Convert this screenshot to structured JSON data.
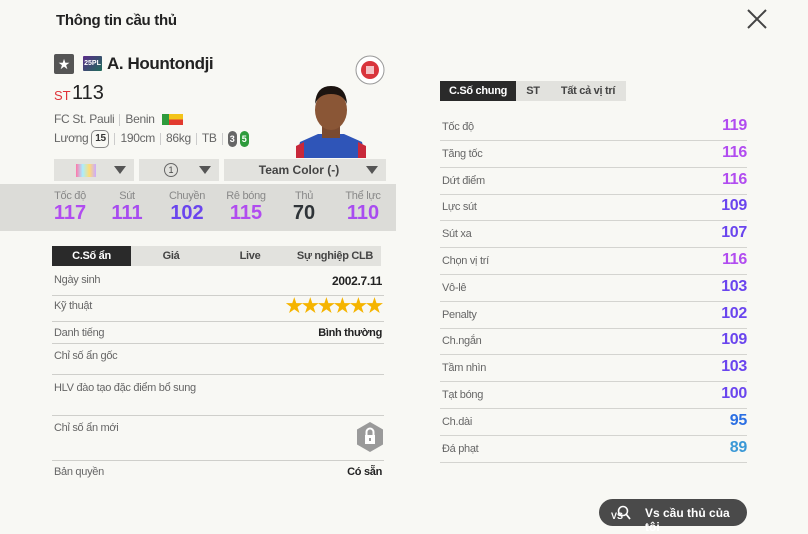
{
  "title": "Thông tin cầu thủ",
  "player": {
    "season_badge": "25PL",
    "name": "A. Hountondji",
    "position": "ST",
    "ovr": "113",
    "club": "FC St. Pauli",
    "nation": "Benin",
    "salary_label": "Lương",
    "salary": "15",
    "height": "190cm",
    "weight": "86kg",
    "body_type": "TB",
    "weak_foot": "3",
    "strong_foot": "5"
  },
  "dropdowns": {
    "level": "1",
    "team_color": "Team Color (-)"
  },
  "summary_stats": [
    {
      "label": "Tốc độ",
      "value": "117",
      "color": "#b14cf0"
    },
    {
      "label": "Sút",
      "value": "111",
      "color": "#a84cf0"
    },
    {
      "label": "Chuyền",
      "value": "102",
      "color": "#6a45ee"
    },
    {
      "label": "Rê bóng",
      "value": "115",
      "color": "#b14cf0"
    },
    {
      "label": "Thủ",
      "value": "70",
      "color": "#2f3438"
    },
    {
      "label": "Thể lực",
      "value": "110",
      "color": "#a84cf0"
    }
  ],
  "hidden_tabs": [
    "C.Số ẩn",
    "Giá",
    "Live",
    "Sự nghiệp CLB"
  ],
  "hidden_info": {
    "birth_label": "Ngày sinh",
    "birth": "2002.7.11",
    "skill_label": "Kỹ thuật",
    "skill_stars": 6,
    "fame_label": "Danh tiếng",
    "fame": "Bình thường",
    "orig_traits_label": "Chỉ số ẩn gốc",
    "coach_traits_label": "HLV đào tạo đặc điểm bổ sung",
    "new_traits_label": "Chỉ số ẩn mới",
    "license_label": "Bản quyền",
    "license": "Có sẵn"
  },
  "stat_tabs": [
    "C.Số chung",
    "ST",
    "Tất cả vị trí"
  ],
  "stats": [
    {
      "label": "Tốc độ",
      "value": "119",
      "color": "#b14cf0"
    },
    {
      "label": "Tăng tốc",
      "value": "116",
      "color": "#b14cf0"
    },
    {
      "label": "Dứt điểm",
      "value": "116",
      "color": "#b14cf0"
    },
    {
      "label": "Lực sút",
      "value": "109",
      "color": "#6a45ee"
    },
    {
      "label": "Sút xa",
      "value": "107",
      "color": "#6a45ee"
    },
    {
      "label": "Chọn vị trí",
      "value": "116",
      "color": "#b14cf0"
    },
    {
      "label": "Vô-lê",
      "value": "103",
      "color": "#6a45ee"
    },
    {
      "label": "Penalty",
      "value": "102",
      "color": "#6a45ee"
    },
    {
      "label": "Ch.ngắn",
      "value": "109",
      "color": "#6a45ee"
    },
    {
      "label": "Tầm nhìn",
      "value": "103",
      "color": "#6a45ee"
    },
    {
      "label": "Tạt bóng",
      "value": "100",
      "color": "#6a45ee"
    },
    {
      "label": "Ch.dài",
      "value": "95",
      "color": "#2b6fe3"
    },
    {
      "label": "Đá phạt",
      "value": "89",
      "color": "#3a98d6"
    }
  ],
  "compare_button": "Vs cầu thủ của tôi"
}
